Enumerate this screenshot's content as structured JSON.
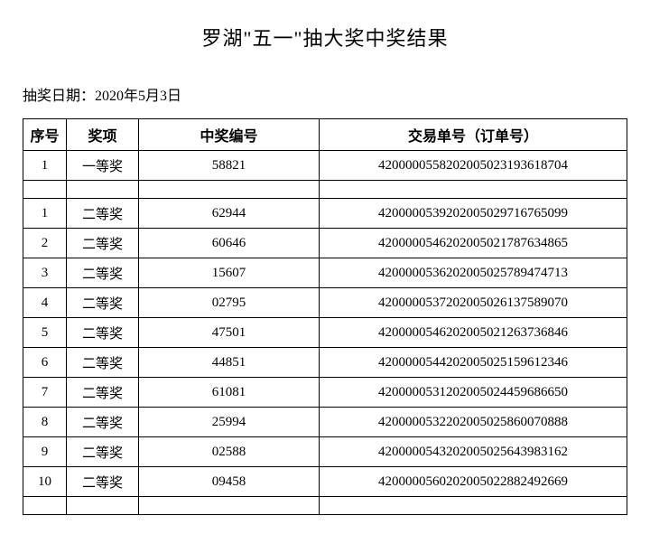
{
  "title": "罗湖\"五一\"抽大奖中奖结果",
  "date_label": "抽奖日期：2020年5月3日",
  "columns": {
    "seq": "序号",
    "prize": "奖项",
    "winno": "中奖编号",
    "order": "交易单号（订单号）"
  },
  "first_prize": {
    "seq": "1",
    "prize": "一等奖",
    "winno": "58821",
    "order": "4200000558202005023193618704"
  },
  "second_prizes": [
    {
      "seq": "1",
      "prize": "二等奖",
      "winno": "62944",
      "order": "4200000539202005029716765099"
    },
    {
      "seq": "2",
      "prize": "二等奖",
      "winno": "60646",
      "order": "4200000546202005021787634865"
    },
    {
      "seq": "3",
      "prize": "二等奖",
      "winno": "15607",
      "order": "4200000536202005025789474713"
    },
    {
      "seq": "4",
      "prize": "二等奖",
      "winno": "02795",
      "order": "4200000537202005026137589070"
    },
    {
      "seq": "5",
      "prize": "二等奖",
      "winno": "47501",
      "order": "4200000546202005021263736846"
    },
    {
      "seq": "6",
      "prize": "二等奖",
      "winno": "44851",
      "order": "4200000544202005025159612346"
    },
    {
      "seq": "7",
      "prize": "二等奖",
      "winno": "61081",
      "order": "4200000531202005024459686650"
    },
    {
      "seq": "8",
      "prize": "二等奖",
      "winno": "25994",
      "order": "4200000532202005025860070888"
    },
    {
      "seq": "9",
      "prize": "二等奖",
      "winno": "02588",
      "order": "4200000543202005025643983162"
    },
    {
      "seq": "10",
      "prize": "二等奖",
      "winno": "09458",
      "order": "4200000560202005022882492669"
    }
  ]
}
